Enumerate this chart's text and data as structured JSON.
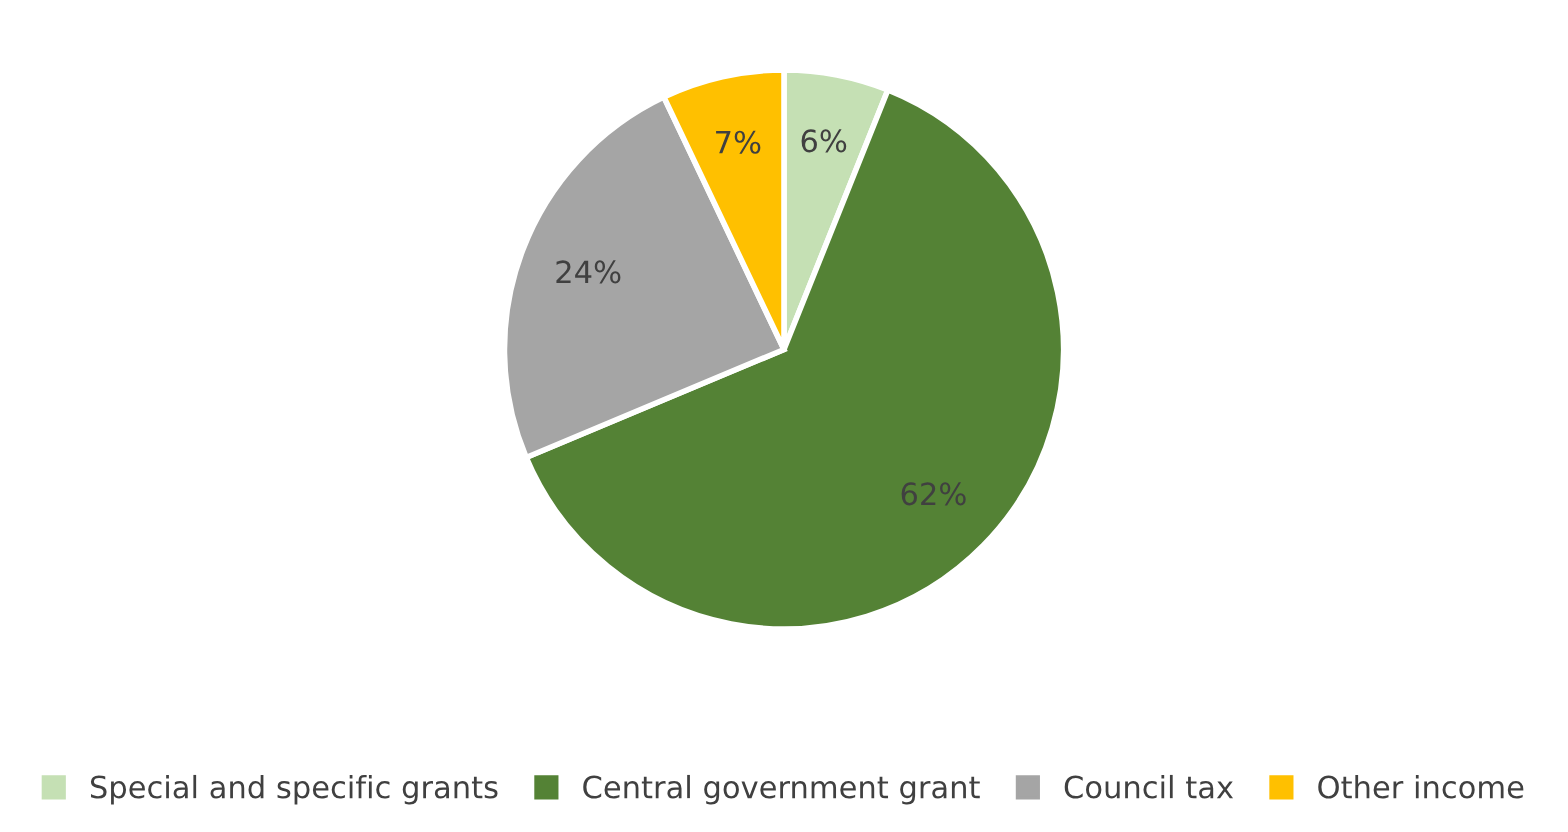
{
  "chart_data": {
    "type": "pie",
    "categories": [
      "Special and specific grants",
      "Central government grant",
      "Council tax",
      "Other income"
    ],
    "values": [
      6,
      62,
      24,
      7
    ],
    "colors": [
      "#c5e0b4",
      "#548235",
      "#a5a5a5",
      "#ffc000"
    ],
    "value_labels": [
      "6%",
      "62%",
      "24%",
      "7%"
    ],
    "legend": "bottom"
  }
}
